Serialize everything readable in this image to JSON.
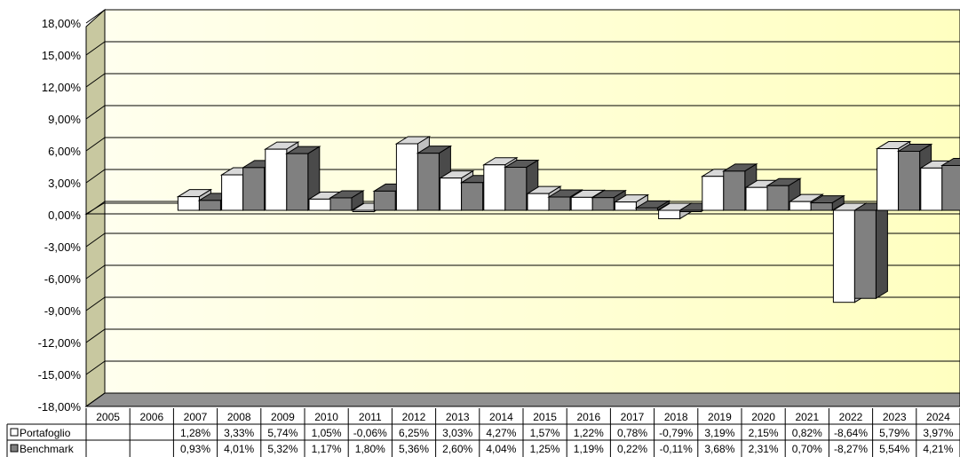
{
  "chart_data": {
    "type": "bar",
    "categories": [
      "2005",
      "2006",
      "2007",
      "2008",
      "2009",
      "2010",
      "2011",
      "2012",
      "2013",
      "2014",
      "2015",
      "2016",
      "2017",
      "2018",
      "2019",
      "2020",
      "2021",
      "2022",
      "2023",
      "2024"
    ],
    "series": [
      {
        "name": "Portafoglio",
        "values": [
          null,
          null,
          1.28,
          3.33,
          5.74,
          1.05,
          -0.06,
          6.25,
          3.03,
          4.27,
          1.57,
          1.22,
          0.78,
          -0.79,
          3.19,
          2.15,
          0.82,
          -8.64,
          5.79,
          3.97
        ],
        "labels": [
          "",
          "",
          "1,28%",
          "3,33%",
          "5,74%",
          "1,05%",
          "-0,06%",
          "6,25%",
          "3,03%",
          "4,27%",
          "1,57%",
          "1,22%",
          "0,78%",
          "-0,79%",
          "3,19%",
          "2,15%",
          "0,82%",
          "-8,64%",
          "5,79%",
          "3,97%"
        ],
        "color": "#ffffff"
      },
      {
        "name": "Benchmark",
        "values": [
          null,
          null,
          0.93,
          4.01,
          5.32,
          1.17,
          1.8,
          5.36,
          2.6,
          4.04,
          1.25,
          1.19,
          0.22,
          -0.11,
          3.68,
          2.31,
          0.7,
          -8.27,
          5.54,
          4.21
        ],
        "labels": [
          "",
          "",
          "0,93%",
          "4,01%",
          "5,32%",
          "1,17%",
          "1,80%",
          "5,36%",
          "2,60%",
          "4,04%",
          "1,25%",
          "1,19%",
          "0,22%",
          "-0,11%",
          "3,68%",
          "2,31%",
          "0,70%",
          "-8,27%",
          "5,54%",
          "4,21%"
        ],
        "color": "#808080"
      }
    ],
    "yticks": [
      18,
      15,
      12,
      9,
      6,
      3,
      0,
      -3,
      -6,
      -9,
      -12,
      -15,
      -18
    ],
    "ytick_labels": [
      "18,00%",
      "15,00%",
      "12,00%",
      "9,00%",
      "6,00%",
      "3,00%",
      "0,00%",
      "-3,00%",
      "-6,00%",
      "-9,00%",
      "-12,00%",
      "-15,00%",
      "-18,00%"
    ],
    "ylim": [
      -18,
      18
    ],
    "grid": true,
    "legend": "data-table",
    "colors": {
      "wall": "#ffffd0",
      "wall_side": "#c8c8a0",
      "floor": "#909090"
    }
  }
}
